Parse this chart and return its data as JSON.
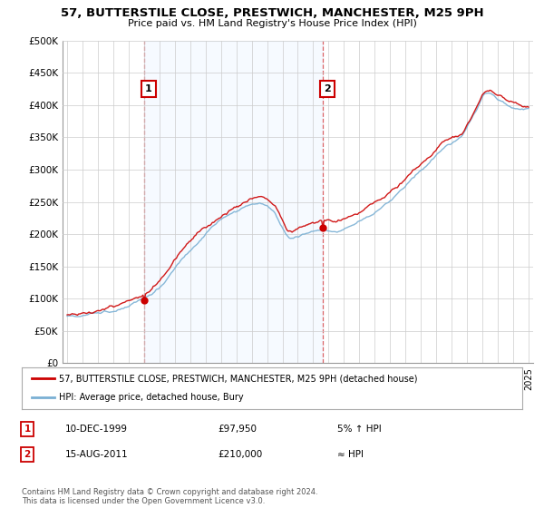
{
  "title": "57, BUTTERSTILE CLOSE, PRESTWICH, MANCHESTER, M25 9PH",
  "subtitle": "Price paid vs. HM Land Registry's House Price Index (HPI)",
  "legend_line1": "57, BUTTERSTILE CLOSE, PRESTWICH, MANCHESTER, M25 9PH (detached house)",
  "legend_line2": "HPI: Average price, detached house, Bury",
  "annotation1_label": "1",
  "annotation1_date": "10-DEC-1999",
  "annotation1_price": "£97,950",
  "annotation1_hpi": "5% ↑ HPI",
  "annotation2_label": "2",
  "annotation2_date": "15-AUG-2011",
  "annotation2_price": "£210,000",
  "annotation2_hpi": "≈ HPI",
  "footnote": "Contains HM Land Registry data © Crown copyright and database right 2024.\nThis data is licensed under the Open Government Licence v3.0.",
  "vline1_x": 2000.0,
  "vline2_x": 2011.62,
  "dot1_x": 2000.0,
  "dot1_y": 97950,
  "dot2_x": 2011.62,
  "dot2_y": 210000,
  "ylim": [
    0,
    500000
  ],
  "xlim": [
    1994.7,
    2025.3
  ],
  "red_color": "#cc0000",
  "blue_color": "#7ab0d4",
  "shade_color": "#ddeeff",
  "background_color": "#ffffff",
  "grid_color": "#cccccc"
}
